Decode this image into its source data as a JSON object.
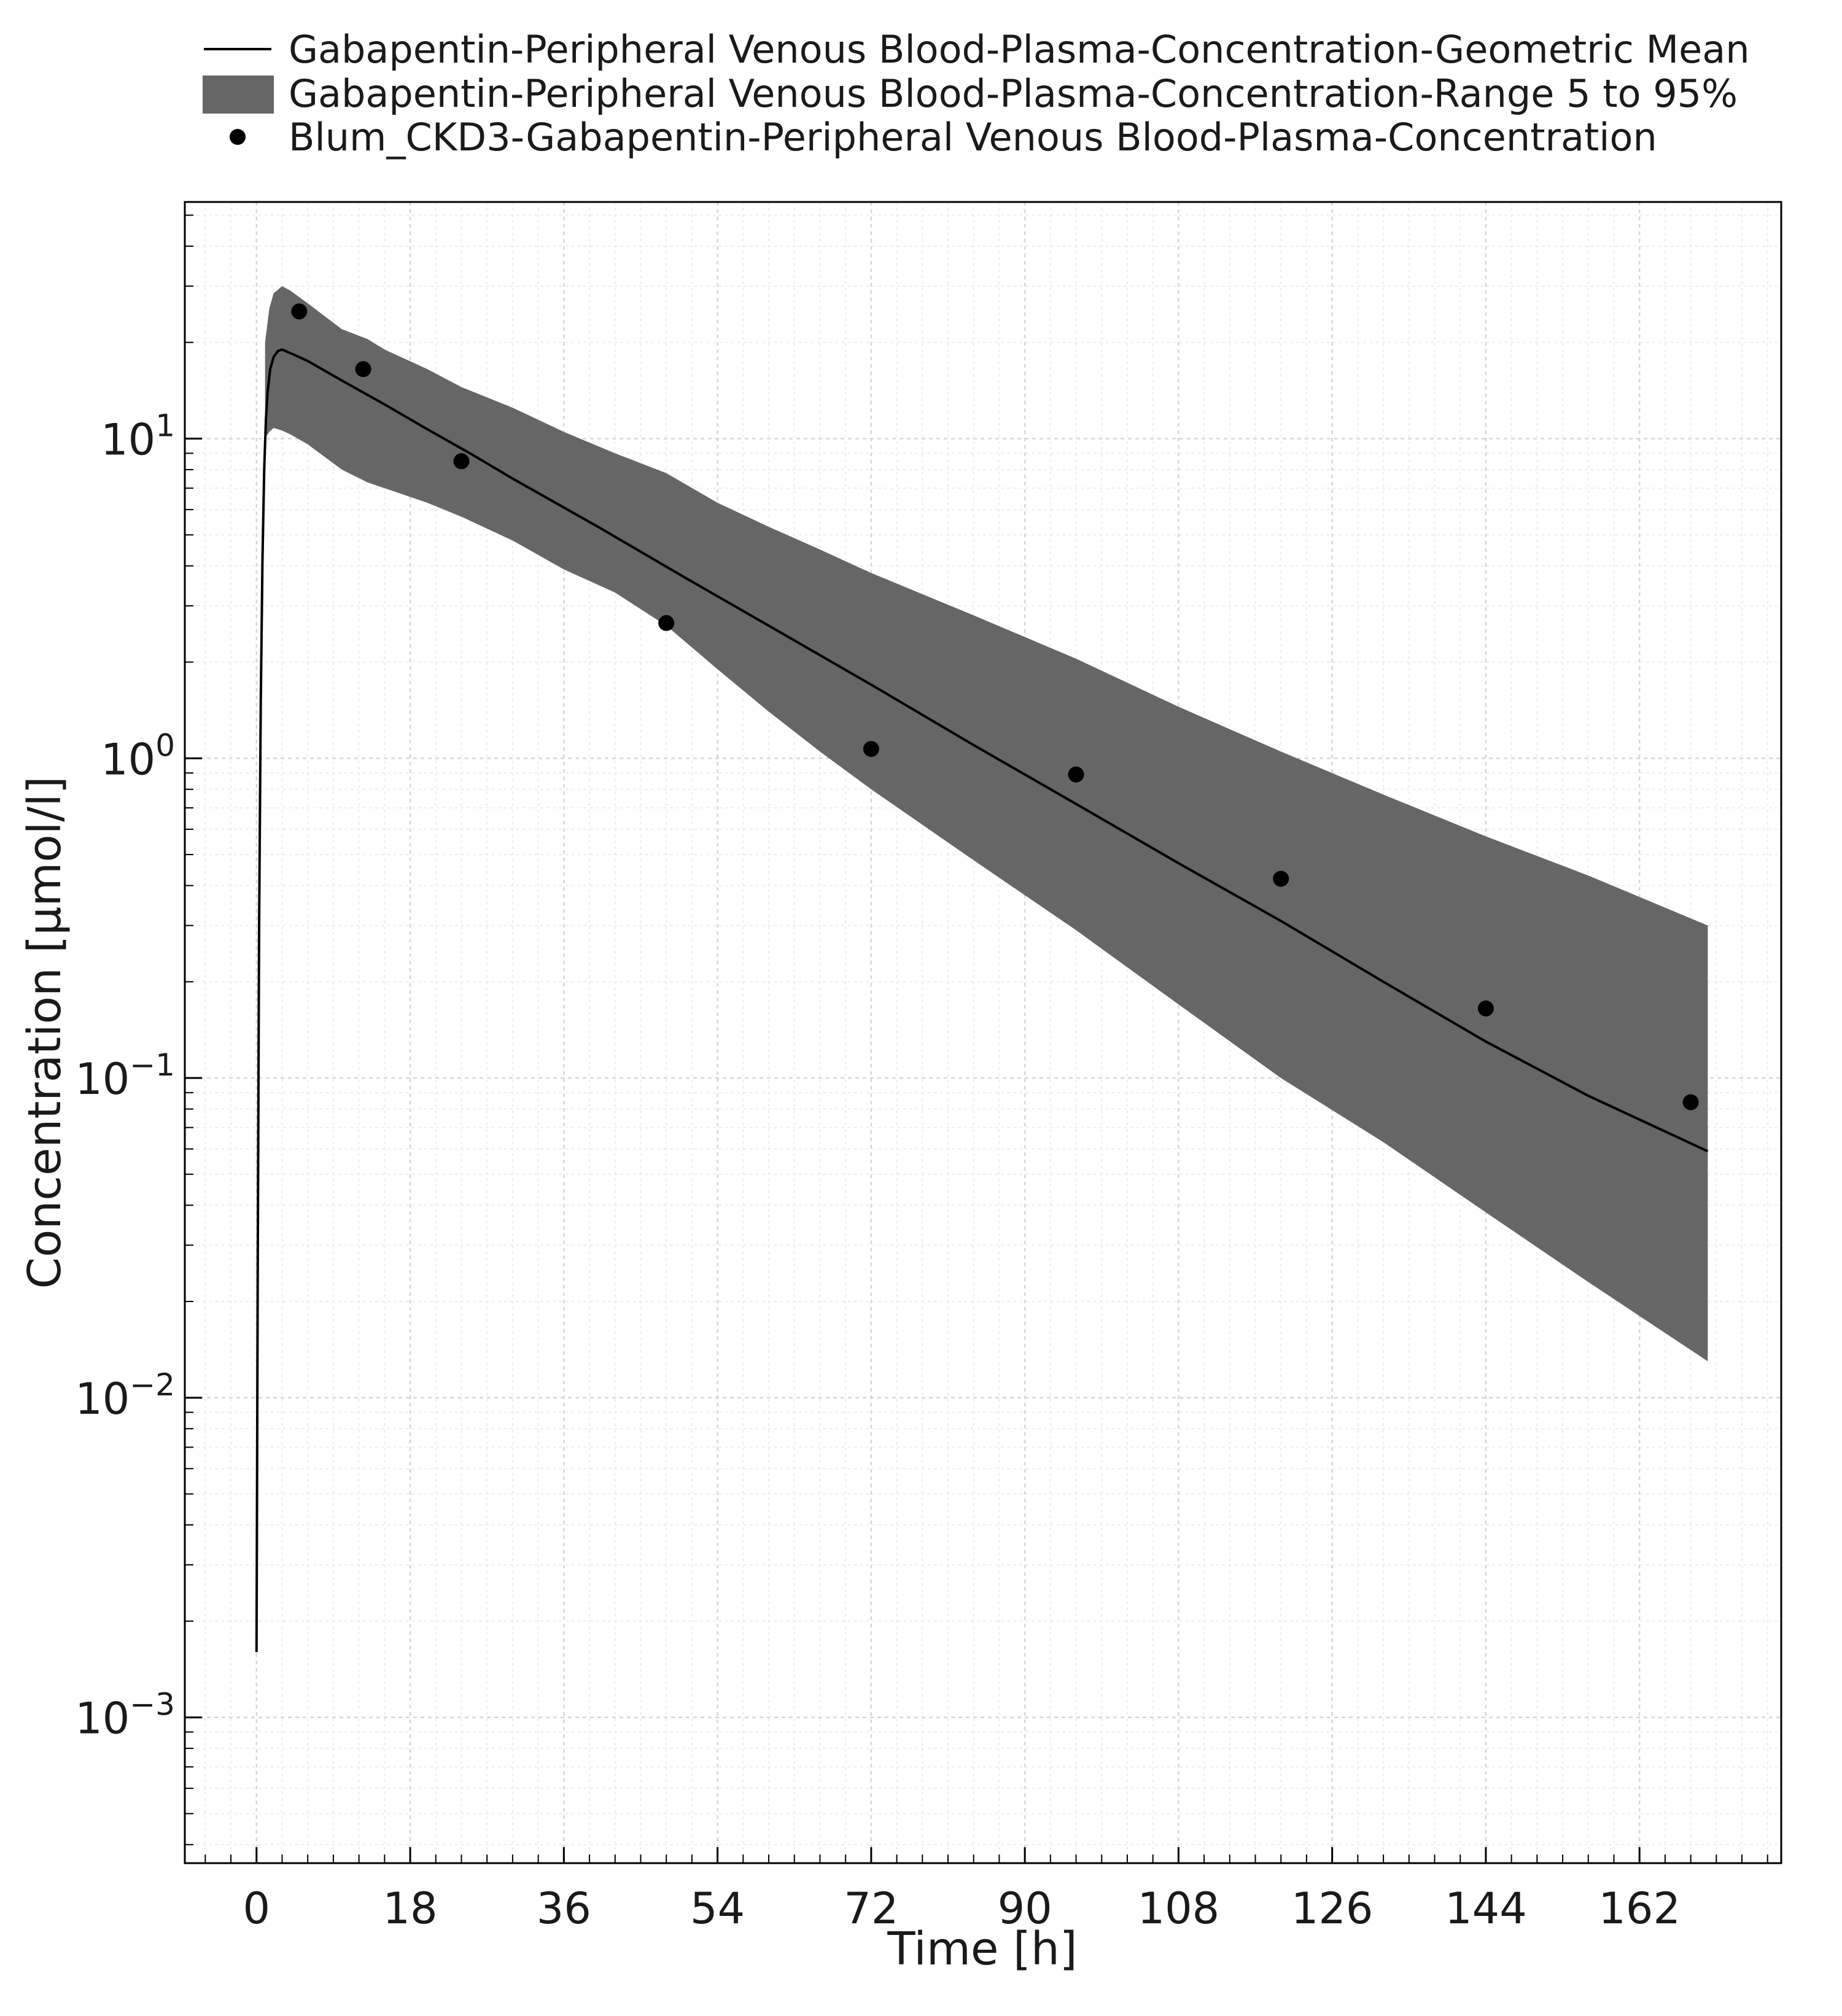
{
  "chart_data": {
    "type": "line",
    "xlabel": "Time [h]",
    "ylabel": "Concentration [µmol/l]",
    "y_scale": "log",
    "xlim": [
      -8.4,
      178.6
    ],
    "ylim": [
      0.00035,
      55
    ],
    "x_ticks": [
      0,
      18,
      36,
      54,
      72,
      90,
      108,
      126,
      144,
      162
    ],
    "x_tick_labels": [
      "0",
      "18",
      "36",
      "54",
      "72",
      "90",
      "108",
      "126",
      "144",
      "162"
    ],
    "y_ticks": [
      {
        "value": 0.001,
        "base": "10",
        "exp": "−3"
      },
      {
        "value": 0.01,
        "base": "10",
        "exp": "−2"
      },
      {
        "value": 0.1,
        "base": "10",
        "exp": "−1"
      },
      {
        "value": 1,
        "base": "10",
        "exp": "0"
      },
      {
        "value": 10,
        "base": "10",
        "exp": "1"
      }
    ],
    "grid": true,
    "legend_position": "top",
    "legend": [
      {
        "label": "Gabapentin-Peripheral Venous Blood-Plasma-Concentration-Geometric Mean",
        "kind": "line"
      },
      {
        "label": "Gabapentin-Peripheral Venous Blood-Plasma-Concentration-Range 5 to 95%",
        "kind": "band"
      },
      {
        "label": "Blum_CKD3-Gabapentin-Peripheral Venous Blood-Plasma-Concentration",
        "kind": "marker"
      }
    ],
    "series": [
      {
        "name": "Gabapentin-Peripheral Venous Blood-Plasma-Concentration-Geometric Mean",
        "type": "line",
        "color": "#000000",
        "x": [
          0,
          0.15,
          0.3,
          0.5,
          0.7,
          0.9,
          1.1,
          1.3,
          1.6,
          2.0,
          2.5,
          3.0,
          4.0,
          6.0,
          10,
          15,
          20,
          25,
          30,
          40,
          50,
          60,
          72,
          84,
          96,
          108,
          120,
          132,
          144,
          156,
          170
        ],
        "y": [
          0.0016,
          0.03,
          0.3,
          1.5,
          4.2,
          8.0,
          11.5,
          14.0,
          16.5,
          18.0,
          18.8,
          19.0,
          18.5,
          17.5,
          15.2,
          12.8,
          10.7,
          9.0,
          7.5,
          5.3,
          3.7,
          2.6,
          1.7,
          1.1,
          0.72,
          0.47,
          0.31,
          0.2,
          0.13,
          0.088,
          0.059
        ]
      },
      {
        "name": "Gabapentin-Peripheral Venous Blood-Plasma-Concentration-Range 5 to 95%",
        "type": "band",
        "color": "#666666",
        "x": [
          1.0,
          1.5,
          2.0,
          3.0,
          4.0,
          6.0,
          10,
          13,
          15,
          20,
          24,
          30,
          36,
          42,
          48,
          54,
          60,
          66,
          72,
          84,
          96,
          108,
          120,
          132,
          144,
          156,
          170
        ],
        "lower": [
          10.0,
          10.5,
          10.8,
          10.6,
          10.3,
          9.6,
          8.0,
          7.3,
          7.0,
          6.3,
          5.7,
          4.8,
          3.9,
          3.3,
          2.6,
          1.9,
          1.4,
          1.05,
          0.8,
          0.48,
          0.29,
          0.17,
          0.1,
          0.063,
          0.038,
          0.023,
          0.013
        ],
        "upper": [
          20.0,
          25.5,
          28.5,
          30.0,
          29.0,
          26.5,
          22.0,
          20.5,
          19.0,
          16.5,
          14.5,
          12.5,
          10.5,
          9.0,
          7.8,
          6.3,
          5.3,
          4.5,
          3.8,
          2.8,
          2.05,
          1.45,
          1.05,
          0.77,
          0.57,
          0.43,
          0.3
        ]
      },
      {
        "name": "Blum_CKD3-Gabapentin-Peripheral Venous Blood-Plasma-Concentration",
        "type": "scatter",
        "color": "#000000",
        "x": [
          5,
          12.5,
          24,
          48,
          72,
          96,
          120,
          144,
          168
        ],
        "y": [
          25.0,
          16.5,
          8.5,
          2.65,
          1.07,
          0.89,
          0.42,
          0.165,
          0.084
        ]
      }
    ]
  }
}
